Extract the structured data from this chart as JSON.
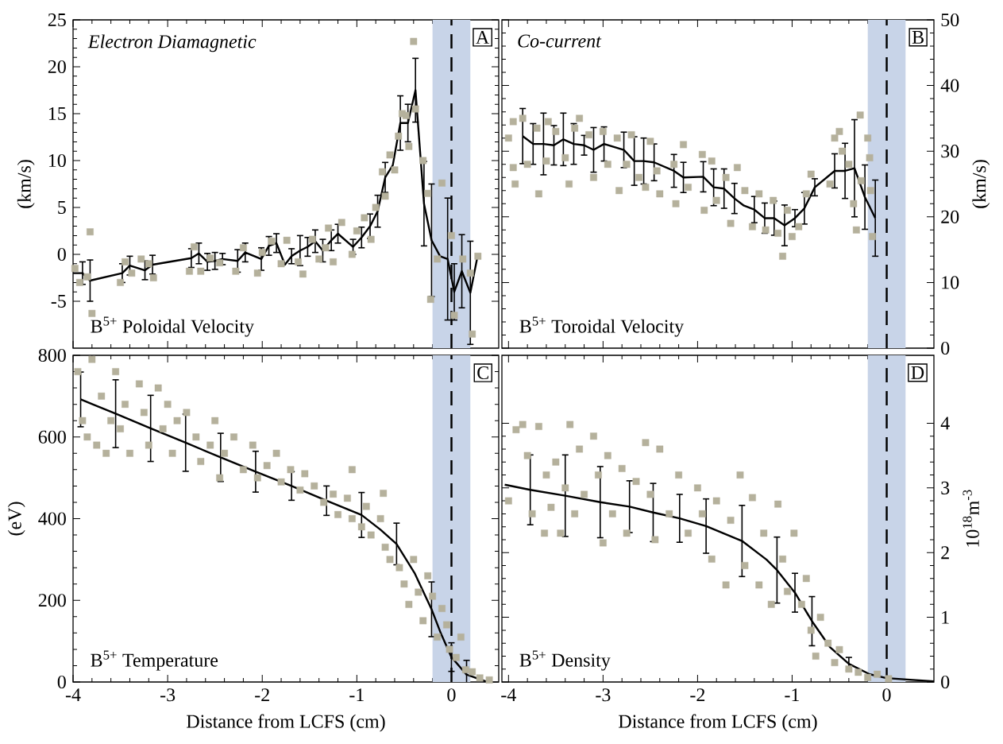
{
  "chart_data": [
    {
      "type": "scatter",
      "title": "Electron Diamagnetic",
      "ylabel": "(km/s)",
      "annotations": [
        "A",
        "B$^{5+}$ Poloidal Velocity"
      ],
      "xlim": [
        -4,
        0.5
      ],
      "xticks": [
        -4,
        -3,
        -2,
        -1,
        0
      ],
      "ylim": [
        -10,
        25
      ],
      "yticks": [
        -5,
        0,
        5,
        10,
        15,
        20,
        25
      ],
      "tick_labels": "y",
      "bands": [
        {
          "axis": "x",
          "from": -0.2,
          "to": 0.2,
          "color": "#c8d4e8"
        }
      ],
      "ref_lines": [
        {
          "axis": "x",
          "value": 0,
          "line_style": "dashed",
          "color": "#000000"
        }
      ],
      "series": [
        {
          "marker": "square",
          "color": "#b5b19c",
          "x": [
            -3.98,
            -3.93,
            -3.82,
            -3.8,
            -3.85,
            -3.5,
            -3.45,
            -3.38,
            -3.28,
            -3.2,
            -3.15,
            -2.77,
            -2.72,
            -2.65,
            -2.55,
            -2.45,
            -2.28,
            -2.2,
            -2.05,
            -2.0,
            -1.9,
            -1.8,
            -1.74,
            -1.62,
            -1.57,
            -1.47,
            -1.4,
            -1.33,
            -1.3,
            -1.25,
            -1.16,
            -1.05,
            -1.0,
            -0.92,
            -0.85,
            -0.8,
            -0.73,
            -0.7,
            -0.65,
            -0.6,
            -0.56,
            -0.52,
            -0.48,
            -0.45,
            -0.4,
            -0.38,
            -0.3,
            -0.25,
            -0.22,
            -0.15,
            -0.1,
            0.03,
            0.0,
            0.12,
            0.2,
            0.22,
            0.28
          ],
          "values": [
            -1.5,
            -3.0,
            2.4,
            -6.3,
            -2.4,
            -3.0,
            -0.8,
            -2.0,
            -0.5,
            -1.0,
            -2.5,
            -1.8,
            0.8,
            -1.8,
            -0.4,
            -0.9,
            -1.8,
            0.7,
            -2.0,
            0.2,
            1.4,
            -1.0,
            1.5,
            -0.8,
            -2.1,
            1.6,
            -0.5,
            0.7,
            2.8,
            -0.8,
            3.4,
            0.0,
            2.5,
            3.9,
            1.6,
            5.0,
            8.8,
            6.2,
            10.6,
            9.0,
            12.6,
            15.0,
            14.8,
            11.5,
            22.7,
            15.5,
            10.0,
            6.5,
            -4.8,
            -0.5,
            7.6,
            -6.5,
            2.0,
            -0.5,
            -2.0,
            -8.5,
            -0.2
          ]
        },
        {
          "type": "line",
          "marker": "none",
          "color": "#000000",
          "x": [
            -4.0,
            -3.9,
            -3.82,
            -3.48,
            -3.4,
            -3.24,
            -3.16,
            -2.75,
            -2.67,
            -2.58,
            -2.5,
            -2.42,
            -2.26,
            -2.18,
            -2.01,
            -1.93,
            -1.85,
            -1.76,
            -1.69,
            -1.6,
            -1.52,
            -1.44,
            -1.36,
            -1.27,
            -1.2,
            -1.04,
            -0.95,
            -0.86,
            -0.78,
            -0.7,
            -0.62,
            -0.54,
            -0.46,
            -0.38,
            -0.29,
            -0.21,
            -0.12,
            -0.04,
            0.03,
            0.11,
            0.2,
            0.28
          ],
          "values": [
            -2.0,
            -2.0,
            -2.8,
            -2.0,
            -1.2,
            -1.7,
            -1.1,
            -0.4,
            0.1,
            -0.8,
            -0.7,
            -0.5,
            -0.7,
            0.2,
            -0.5,
            0.9,
            1.2,
            -1.1,
            -0.2,
            0.4,
            0.8,
            1.4,
            0.4,
            1.5,
            2.2,
            0.8,
            1.8,
            3.0,
            4.6,
            8.2,
            9.5,
            14.0,
            14.0,
            17.5,
            5.4,
            1.5,
            -0.2,
            -0.5,
            -4.0,
            -1.8,
            -4.1,
            0.0
          ],
          "errors": [
            null,
            1.2,
            2.2,
            1.0,
            1.0,
            1.0,
            1.0,
            1.0,
            1.1,
            0.9,
            0.9,
            0.6,
            1.2,
            1.0,
            1.2,
            1.0,
            1.0,
            null,
            0.8,
            1.6,
            1.0,
            1.2,
            1.2,
            1.1,
            1.0,
            0.8,
            1.1,
            1.3,
            1.7,
            1.6,
            null,
            2.9,
            2.0,
            3.4,
            4.5,
            6.0,
            null,
            6.5,
            3.0,
            3.9,
            5.5,
            null
          ]
        }
      ]
    },
    {
      "type": "scatter",
      "title": "Co-current",
      "y2label": "(km/s)",
      "annotations": [
        "B",
        "B$^{5+}$  Toroidal Velocity"
      ],
      "xlim": [
        -4.07,
        0.5
      ],
      "xticks": [
        -4,
        -3,
        -2,
        -1,
        0
      ],
      "y2lim": [
        0,
        50
      ],
      "y2ticks": [
        0,
        10,
        20,
        30,
        40,
        50
      ],
      "tick_labels": "y",
      "bands": [
        {
          "axis": "x",
          "from": -0.2,
          "to": 0.2,
          "color": "#c8d4e8"
        }
      ],
      "ref_lines": [
        {
          "axis": "x",
          "value": 0,
          "line_style": "dashed",
          "color": "#000000"
        }
      ],
      "series": [
        {
          "axis": "y2",
          "marker": "square",
          "color": "#b5b19c",
          "x": [
            -4.0,
            -3.95,
            -3.95,
            -3.93,
            -3.85,
            -3.8,
            -3.7,
            -3.68,
            -3.6,
            -3.58,
            -3.5,
            -3.4,
            -3.36,
            -3.3,
            -3.25,
            -3.15,
            -3.1,
            -3.0,
            -2.95,
            -2.85,
            -2.83,
            -2.75,
            -2.7,
            -2.62,
            -2.55,
            -2.5,
            -2.43,
            -2.4,
            -2.25,
            -2.23,
            -2.15,
            -2.1,
            -1.95,
            -1.93,
            -1.85,
            -1.8,
            -1.7,
            -1.65,
            -1.58,
            -1.5,
            -1.42,
            -1.35,
            -1.28,
            -1.2,
            -1.15,
            -1.1,
            -1.05,
            -1.0,
            -0.93,
            -0.85,
            -0.8,
            -0.6,
            -0.55,
            -0.5,
            -0.47,
            -0.4,
            -0.35,
            -0.32,
            -0.28,
            -0.27,
            -0.2,
            -0.18,
            -0.15,
            -0.17
          ],
          "values": [
            32.0,
            34.5,
            27.5,
            25.0,
            35.0,
            28.0,
            33.5,
            23.5,
            28.5,
            34.5,
            33.0,
            29.0,
            25.0,
            33.5,
            35.0,
            32.5,
            26.0,
            33.0,
            28.0,
            32.0,
            24.0,
            28.0,
            32.5,
            26.0,
            24.5,
            31.5,
            27.0,
            23.5,
            28.0,
            22.0,
            31.0,
            24.5,
            29.5,
            21.0,
            28.5,
            22.5,
            26.0,
            19.0,
            27.5,
            24.0,
            18.5,
            23.5,
            18.0,
            22.5,
            17.5,
            14.0,
            21.0,
            17.0,
            18.5,
            23.5,
            26.5,
            25.0,
            32.0,
            33.0,
            30.0,
            28.0,
            22.0,
            18.0,
            35.5,
            25.5,
            32.0,
            29.0,
            17.0,
            24.0
          ]
        },
        {
          "type": "line",
          "axis": "y2",
          "marker": "none",
          "color": "#000000",
          "x": [
            -3.85,
            -3.74,
            -3.63,
            -3.52,
            -3.42,
            -3.31,
            -3.2,
            -3.1,
            -2.99,
            -2.78,
            -2.67,
            -2.57,
            -2.46,
            -2.25,
            -2.15,
            -1.94,
            -1.83,
            -1.72,
            -1.61,
            -1.51,
            -1.4,
            -1.29,
            -1.19,
            -1.08,
            -0.97,
            -0.87,
            -0.76,
            -0.55,
            -0.44,
            -0.34,
            -0.23,
            -0.12
          ],
          "values": [
            32.3,
            31.1,
            31.1,
            30.9,
            31.8,
            31.1,
            30.9,
            30.2,
            31.1,
            30.2,
            28.5,
            28.5,
            28.3,
            27.0,
            26.0,
            26.1,
            24.5,
            24.3,
            22.8,
            21.7,
            21.1,
            19.8,
            19.8,
            18.7,
            19.8,
            21.3,
            24.5,
            27.0,
            27.0,
            27.4,
            23.0,
            19.8
          ],
          "errors": [
            4.2,
            3.1,
            4.7,
            3.0,
            4.0,
            3.1,
            1.5,
            3.4,
            2.6,
            2.7,
            3.7,
            3.5,
            2.8,
            2.5,
            2.3,
            2.3,
            2.8,
            3.0,
            2.3,
            null,
            2.0,
            2.3,
            2.6,
            3.1,
            1.3,
            2.4,
            1.3,
            2.6,
            4.2,
            7.4,
            4.9,
            5.8
          ]
        }
      ]
    },
    {
      "type": "scatter",
      "xlabel": "Distance from LCFS (cm)",
      "ylabel": "(eV)",
      "annotations": [
        "C",
        "B$^{5+}$  Temperature"
      ],
      "xlim": [
        -4,
        0.5
      ],
      "xticks": [
        -4,
        -3,
        -2,
        -1,
        0
      ],
      "ylim": [
        0,
        800
      ],
      "yticks": [
        0,
        200,
        400,
        600,
        800
      ],
      "bands": [
        {
          "axis": "x",
          "from": -0.2,
          "to": 0.2,
          "color": "#c8d4e8"
        }
      ],
      "ref_lines": [
        {
          "axis": "x",
          "value": 0,
          "line_style": "dashed",
          "color": "#000000"
        }
      ],
      "series": [
        {
          "marker": "square",
          "color": "#b5b19c",
          "x": [
            -3.95,
            -3.9,
            -3.85,
            -3.8,
            -3.75,
            -3.7,
            -3.65,
            -3.6,
            -3.55,
            -3.5,
            -3.45,
            -3.4,
            -3.3,
            -3.25,
            -3.2,
            -3.1,
            -3.05,
            -3.0,
            -2.95,
            -2.9,
            -2.8,
            -2.7,
            -2.65,
            -2.55,
            -2.5,
            -2.45,
            -2.4,
            -2.3,
            -2.2,
            -2.1,
            -2.05,
            -1.95,
            -1.85,
            -1.8,
            -1.7,
            -1.6,
            -1.55,
            -1.45,
            -1.35,
            -1.25,
            -1.2,
            -1.1,
            -1.05,
            -1.05,
            -0.95,
            -0.9,
            -0.85,
            -0.75,
            -0.72,
            -0.7,
            -0.65,
            -0.55,
            -0.5,
            -0.45,
            -0.4,
            -0.35,
            -0.3,
            -0.25,
            -0.2,
            -0.15,
            -0.1,
            -0.05,
            -0.02,
            0.05,
            0.1,
            0.15,
            0.22,
            0.3,
            0.4
          ],
          "values": [
            760,
            640,
            600,
            790,
            580,
            700,
            560,
            640,
            760,
            620,
            680,
            560,
            730,
            660,
            580,
            720,
            620,
            680,
            560,
            640,
            660,
            600,
            540,
            580,
            640,
            500,
            560,
            600,
            520,
            580,
            500,
            530,
            560,
            490,
            520,
            470,
            510,
            480,
            440,
            460,
            410,
            450,
            400,
            520,
            380,
            430,
            360,
            400,
            462,
            330,
            300,
            280,
            240,
            190,
            300,
            220,
            150,
            260,
            210,
            110,
            180,
            140,
            80,
            60,
            110,
            30,
            25,
            10,
            5
          ]
        },
        {
          "type": "line",
          "marker": "none",
          "color": "#000000",
          "x": [
            -3.92,
            -3.55,
            -3.18,
            -2.81,
            -2.44,
            -2.07,
            -1.69,
            -1.32,
            -0.95,
            -0.75,
            -0.58,
            -0.39,
            -0.21,
            -0.11,
            0.0,
            0.16,
            0.38
          ],
          "values": [
            692,
            657,
            621,
            586,
            550,
            515,
            480,
            444,
            409,
            373,
            338,
            267,
            178,
            118,
            61,
            18,
            0
          ],
          "errors": [
            67,
            83,
            81,
            70,
            59,
            50,
            35,
            36,
            55,
            null,
            51,
            null,
            67,
            null,
            35,
            35,
            null
          ]
        }
      ]
    },
    {
      "type": "scatter",
      "xlabel": "Distance from LCFS (cm)",
      "y2label": "10$^{18}$m$^{-3}$",
      "annotations": [
        "D",
        "B$^{5+}$  Density"
      ],
      "xlim": [
        -4.07,
        0.5
      ],
      "xticks": [
        -4,
        -3,
        -2,
        -1,
        0
      ],
      "y2lim": [
        0,
        5.05
      ],
      "y2ticks": [
        0,
        1,
        2,
        3,
        4
      ],
      "bands": [
        {
          "axis": "x",
          "from": -0.2,
          "to": 0.2,
          "color": "#c8d4e8"
        }
      ],
      "ref_lines": [
        {
          "axis": "x",
          "value": 0,
          "line_style": "dashed",
          "color": "#000000"
        }
      ],
      "series": [
        {
          "axis": "y2",
          "marker": "square",
          "color": "#b5b19c",
          "x": [
            -4.0,
            -3.92,
            -3.85,
            -3.8,
            -3.75,
            -3.68,
            -3.62,
            -3.6,
            -3.55,
            -3.5,
            -3.45,
            -3.4,
            -3.35,
            -3.3,
            -3.25,
            -3.2,
            -3.1,
            -3.05,
            -3.0,
            -2.95,
            -2.9,
            -2.8,
            -2.75,
            -2.65,
            -2.55,
            -2.5,
            -2.45,
            -2.4,
            -2.3,
            -2.2,
            -2.1,
            -2.0,
            -1.95,
            -1.85,
            -1.8,
            -1.7,
            -1.65,
            -1.55,
            -1.5,
            -1.42,
            -1.35,
            -1.3,
            -1.22,
            -1.15,
            -1.1,
            -1.05,
            -0.98,
            -0.9,
            -0.85,
            -0.8,
            -0.75,
            -0.7,
            -0.62,
            -0.55,
            -0.5,
            -0.4,
            -0.3,
            -0.2,
            -0.1,
            0.02
          ],
          "values": [
            2.8,
            3.9,
            3.98,
            3.5,
            2.6,
            3.95,
            2.3,
            3.2,
            2.7,
            3.4,
            2.3,
            3.0,
            3.98,
            2.6,
            3.6,
            2.9,
            3.8,
            3.2,
            2.15,
            3.5,
            2.6,
            3.3,
            2.3,
            3.1,
            3.7,
            2.9,
            2.2,
            3.6,
            2.6,
            3.2,
            2.3,
            3.0,
            2.6,
            1.9,
            2.8,
            1.5,
            2.5,
            3.2,
            1.8,
            2.85,
            1.5,
            2.3,
            1.2,
            2.75,
            1.9,
            1.4,
            2.3,
            1.2,
            1.6,
            0.8,
            0.4,
            1.0,
            0.6,
            0.3,
            0.5,
            0.2,
            0.15,
            0.07,
            0.12,
            0.05
          ]
        },
        {
          "type": "line",
          "axis": "y2",
          "marker": "none",
          "color": "#000000",
          "x": [
            -4.04,
            -3.77,
            -3.4,
            -3.03,
            -2.72,
            -2.47,
            -2.19,
            -1.91,
            -1.53,
            -1.27,
            -1.16,
            -0.97,
            -0.79,
            -0.6,
            -0.4,
            -0.18,
            0.0,
            0.5
          ],
          "values": [
            3.05,
            2.97,
            2.88,
            2.78,
            2.71,
            2.62,
            2.53,
            2.41,
            2.18,
            1.89,
            1.73,
            1.38,
            0.94,
            0.54,
            0.28,
            0.12,
            0.06,
            0.01
          ],
          "errors": [
            null,
            0.54,
            0.63,
            0.55,
            0.4,
            0.45,
            0.37,
            0.42,
            0.55,
            null,
            0.51,
            0.3,
            0.38,
            null,
            0.1,
            null,
            null,
            null
          ]
        }
      ]
    }
  ]
}
